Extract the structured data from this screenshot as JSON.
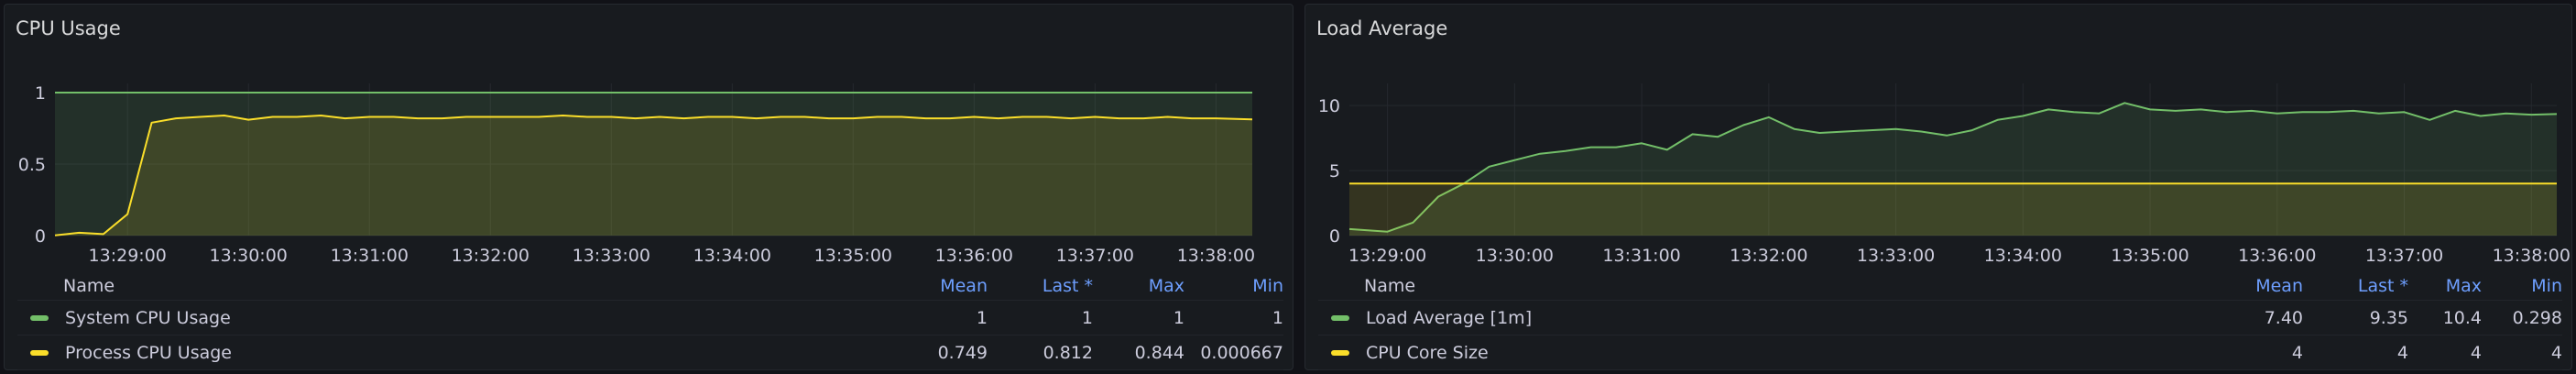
{
  "panels": [
    {
      "title": "CPU Usage",
      "legend": {
        "headers": {
          "name": "Name",
          "mean": "Mean",
          "last": "Last *",
          "max": "Max",
          "min": "Min"
        },
        "rows": [
          {
            "name": "System CPU Usage",
            "color": "#73bf69",
            "mean": "1",
            "last": "1",
            "max": "1",
            "min": "1"
          },
          {
            "name": "Process CPU Usage",
            "color": "#fade2a",
            "mean": "0.749",
            "last": "0.812",
            "max": "0.844",
            "min": "0.000667"
          }
        ]
      }
    },
    {
      "title": "Load Average",
      "legend": {
        "headers": {
          "name": "Name",
          "mean": "Mean",
          "last": "Last *",
          "max": "Max",
          "min": "Min"
        },
        "rows": [
          {
            "name": "Load Average [1m]",
            "color": "#73bf69",
            "mean": "7.40",
            "last": "9.35",
            "max": "10.4",
            "min": "0.298"
          },
          {
            "name": "CPU Core Size",
            "color": "#fade2a",
            "mean": "4",
            "last": "4",
            "max": "4",
            "min": "4"
          }
        ]
      }
    }
  ],
  "chart_data": [
    {
      "type": "line",
      "title": "CPU Usage",
      "x_ticks": [
        "13:29:00",
        "13:30:00",
        "13:31:00",
        "13:32:00",
        "13:33:00",
        "13:34:00",
        "13:35:00",
        "13:36:00",
        "13:37:00",
        "13:38:00"
      ],
      "y_ticks": [
        "0",
        "0.5",
        "1"
      ],
      "ylim": [
        0,
        1
      ],
      "x_range_minutes": [
        -0.6,
        9.3
      ],
      "grid": true,
      "series": [
        {
          "name": "System CPU Usage",
          "color": "#73bf69",
          "x": [
            -0.6,
            9.3
          ],
          "y": [
            1,
            1
          ]
        },
        {
          "name": "Process CPU Usage",
          "color": "#fade2a",
          "x": [
            -0.6,
            -0.4,
            -0.2,
            0,
            0.2,
            0.4,
            0.6,
            0.8,
            1.0,
            1.2,
            1.4,
            1.6,
            1.8,
            2.0,
            2.2,
            2.4,
            2.6,
            2.8,
            3.0,
            3.2,
            3.4,
            3.6,
            3.8,
            4.0,
            4.2,
            4.4,
            4.6,
            4.8,
            5.0,
            5.2,
            5.4,
            5.6,
            5.8,
            6.0,
            6.2,
            6.4,
            6.6,
            6.8,
            7.0,
            7.2,
            7.4,
            7.6,
            7.8,
            8.0,
            8.2,
            8.4,
            8.6,
            8.8,
            9.0,
            9.3
          ],
          "y": [
            0.001,
            0.02,
            0.01,
            0.15,
            0.79,
            0.82,
            0.83,
            0.84,
            0.81,
            0.83,
            0.83,
            0.84,
            0.82,
            0.83,
            0.83,
            0.82,
            0.82,
            0.83,
            0.83,
            0.83,
            0.83,
            0.84,
            0.83,
            0.83,
            0.82,
            0.83,
            0.82,
            0.83,
            0.83,
            0.82,
            0.83,
            0.83,
            0.82,
            0.82,
            0.83,
            0.83,
            0.82,
            0.82,
            0.83,
            0.82,
            0.83,
            0.83,
            0.82,
            0.83,
            0.82,
            0.82,
            0.83,
            0.82,
            0.82,
            0.812
          ]
        }
      ]
    },
    {
      "type": "line",
      "title": "Load Average",
      "x_ticks": [
        "13:29:00",
        "13:30:00",
        "13:31:00",
        "13:32:00",
        "13:33:00",
        "13:34:00",
        "13:35:00",
        "13:36:00",
        "13:37:00",
        "13:38:00"
      ],
      "y_ticks": [
        "0",
        "5",
        "10"
      ],
      "ylim": [
        0,
        11
      ],
      "x_range_minutes": [
        -0.3,
        9.2
      ],
      "grid": true,
      "series": [
        {
          "name": "Load Average [1m]",
          "color": "#73bf69",
          "x": [
            -0.3,
            0,
            0.2,
            0.4,
            0.6,
            0.8,
            1.0,
            1.2,
            1.4,
            1.6,
            1.8,
            2.0,
            2.2,
            2.4,
            2.6,
            2.8,
            3.0,
            3.2,
            3.4,
            3.6,
            3.8,
            4.0,
            4.2,
            4.4,
            4.6,
            4.8,
            5.0,
            5.2,
            5.4,
            5.6,
            5.8,
            6.0,
            6.2,
            6.4,
            6.6,
            6.8,
            7.0,
            7.2,
            7.4,
            7.6,
            7.8,
            8.0,
            8.2,
            8.4,
            8.6,
            8.8,
            9.0,
            9.2
          ],
          "y": [
            0.5,
            0.3,
            1.0,
            3.0,
            4.0,
            5.3,
            5.8,
            6.3,
            6.5,
            6.8,
            6.8,
            7.1,
            6.6,
            7.8,
            7.6,
            8.5,
            9.1,
            8.2,
            7.9,
            8.0,
            8.1,
            8.2,
            8.0,
            7.7,
            8.1,
            8.9,
            9.2,
            9.7,
            9.5,
            9.4,
            10.2,
            9.7,
            9.6,
            9.7,
            9.5,
            9.6,
            9.4,
            9.5,
            9.5,
            9.6,
            9.4,
            9.5,
            8.9,
            9.6,
            9.2,
            9.4,
            9.3,
            9.35
          ]
        },
        {
          "name": "CPU Core Size",
          "color": "#fade2a",
          "x": [
            -0.3,
            9.2
          ],
          "y": [
            4,
            4
          ]
        }
      ]
    }
  ]
}
